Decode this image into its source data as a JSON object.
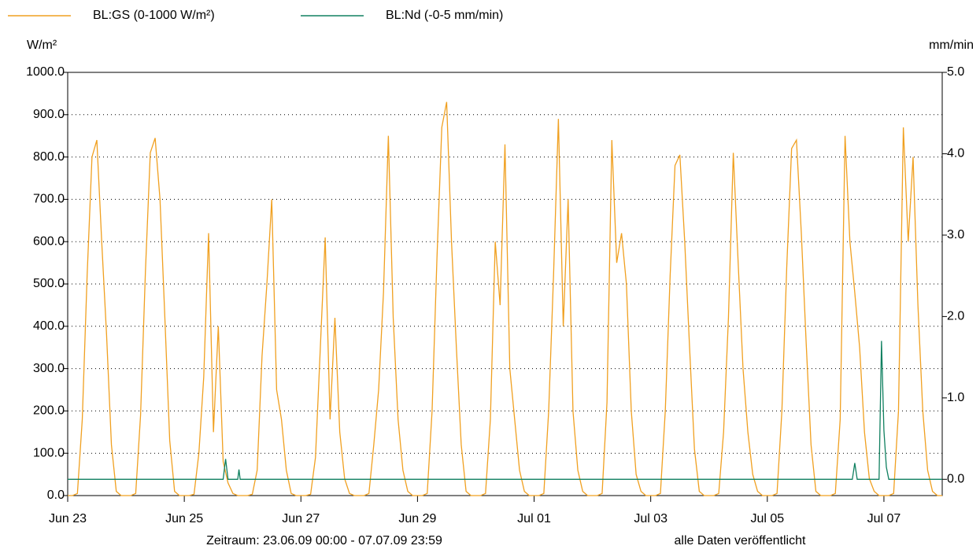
{
  "chart_data": {
    "type": "line",
    "y_label": "W/m²",
    "y2_label": "mm/min",
    "footer_left": "Zeitraum: 23.06.09 00:00 - 07.07.09 23:59",
    "footer_right": "alle Daten veröffentlicht",
    "xlim": [
      0,
      360
    ],
    "xticks": [
      {
        "value": 0,
        "label": "Jun 23"
      },
      {
        "value": 48,
        "label": "Jun 25"
      },
      {
        "value": 96,
        "label": "Jun 27"
      },
      {
        "value": 144,
        "label": "Jun 29"
      },
      {
        "value": 192,
        "label": "Jul 01"
      },
      {
        "value": 240,
        "label": "Jul 03"
      },
      {
        "value": 288,
        "label": "Jul 05"
      },
      {
        "value": 336,
        "label": "Jul 07"
      }
    ],
    "ylim": [
      0,
      1000
    ],
    "yticks": [
      {
        "value": 0,
        "label": "0.0"
      },
      {
        "value": 100,
        "label": "100.0"
      },
      {
        "value": 200,
        "label": "200.0"
      },
      {
        "value": 300,
        "label": "300.0"
      },
      {
        "value": 400,
        "label": "400.0"
      },
      {
        "value": 500,
        "label": "500.0"
      },
      {
        "value": 600,
        "label": "600.0"
      },
      {
        "value": 700,
        "label": "700.0"
      },
      {
        "value": 800,
        "label": "800.0"
      },
      {
        "value": 900,
        "label": "900.0"
      },
      {
        "value": 1000,
        "label": "1000.0"
      }
    ],
    "y2lim": [
      -0.2,
      5.0
    ],
    "y2ticks": [
      {
        "value": 0,
        "label": "0.0"
      },
      {
        "value": 1,
        "label": "1.0"
      },
      {
        "value": 2,
        "label": "2.0"
      },
      {
        "value": 3,
        "label": "3.0"
      },
      {
        "value": 4,
        "label": "4.0"
      },
      {
        "value": 5,
        "label": "5.0"
      }
    ],
    "grid": true,
    "series": [
      {
        "name": "BL:GS (0-1000 W/m²)",
        "color": "#f0a020",
        "x": [
          0,
          2,
          4,
          6,
          8,
          10,
          12,
          14,
          16,
          18,
          20,
          22,
          24,
          26,
          28,
          30,
          32,
          34,
          36,
          38,
          40,
          42,
          44,
          46,
          48,
          50,
          52,
          54,
          56,
          58,
          60,
          62,
          64,
          66,
          68,
          70,
          72,
          74,
          76,
          78,
          80,
          82,
          84,
          86,
          88,
          90,
          92,
          94,
          96,
          98,
          100,
          102,
          104,
          106,
          108,
          110,
          112,
          114,
          116,
          118,
          120,
          122,
          124,
          126,
          128,
          130,
          132,
          134,
          136,
          138,
          140,
          142,
          144,
          146,
          148,
          150,
          152,
          154,
          156,
          158,
          160,
          162,
          164,
          166,
          168,
          170,
          172,
          174,
          176,
          178,
          180,
          182,
          184,
          186,
          188,
          190,
          192,
          194,
          196,
          198,
          200,
          202,
          204,
          206,
          208,
          210,
          212,
          214,
          216,
          218,
          220,
          222,
          224,
          226,
          228,
          230,
          232,
          234,
          236,
          238,
          240,
          242,
          244,
          246,
          248,
          250,
          252,
          254,
          256,
          258,
          260,
          262,
          264,
          266,
          268,
          270,
          272,
          274,
          276,
          278,
          280,
          282,
          284,
          286,
          288,
          290,
          292,
          294,
          296,
          298,
          300,
          302,
          304,
          306,
          308,
          310,
          312,
          314,
          316,
          318,
          320,
          322,
          324,
          326,
          328,
          330,
          332,
          334,
          336,
          338,
          340,
          342,
          344,
          346,
          348,
          350,
          352,
          354,
          356,
          358,
          360
        ],
        "values": [
          0,
          0,
          5,
          180,
          520,
          800,
          840,
          600,
          380,
          120,
          10,
          0,
          0,
          0,
          5,
          190,
          530,
          810,
          845,
          700,
          420,
          130,
          10,
          0,
          0,
          0,
          3,
          100,
          280,
          620,
          150,
          400,
          80,
          30,
          5,
          0,
          0,
          0,
          3,
          60,
          330,
          500,
          700,
          250,
          180,
          60,
          5,
          0,
          0,
          0,
          3,
          90,
          350,
          610,
          180,
          420,
          150,
          40,
          5,
          0,
          0,
          0,
          5,
          120,
          250,
          480,
          850,
          420,
          180,
          60,
          10,
          0,
          0,
          0,
          5,
          200,
          560,
          870,
          930,
          600,
          350,
          120,
          10,
          0,
          0,
          0,
          5,
          180,
          600,
          450,
          830,
          300,
          180,
          60,
          10,
          0,
          0,
          0,
          5,
          200,
          520,
          890,
          400,
          700,
          200,
          60,
          10,
          0,
          0,
          0,
          5,
          220,
          840,
          550,
          620,
          500,
          200,
          50,
          10,
          0,
          0,
          0,
          5,
          200,
          520,
          780,
          805,
          600,
          350,
          110,
          10,
          0,
          0,
          0,
          5,
          150,
          420,
          810,
          550,
          300,
          150,
          50,
          10,
          0,
          0,
          0,
          5,
          200,
          540,
          820,
          840,
          620,
          360,
          120,
          10,
          0,
          0,
          0,
          5,
          180,
          850,
          600,
          480,
          350,
          150,
          40,
          10,
          0,
          0,
          0,
          5,
          200,
          870,
          600,
          800,
          450,
          200,
          60,
          10,
          0,
          0
        ]
      },
      {
        "name": "BL:Nd (-0-5 mm/min)",
        "color": "#108060",
        "axis": "y2",
        "x": [
          0,
          64,
          65,
          66,
          70,
          70.5,
          71,
          323,
          324,
          325,
          334,
          335,
          336,
          337,
          338,
          360
        ],
        "values": [
          0,
          0,
          0.25,
          0,
          0,
          0.12,
          0,
          0,
          0.2,
          0,
          0,
          1.7,
          0.6,
          0.15,
          0,
          0
        ]
      }
    ]
  }
}
